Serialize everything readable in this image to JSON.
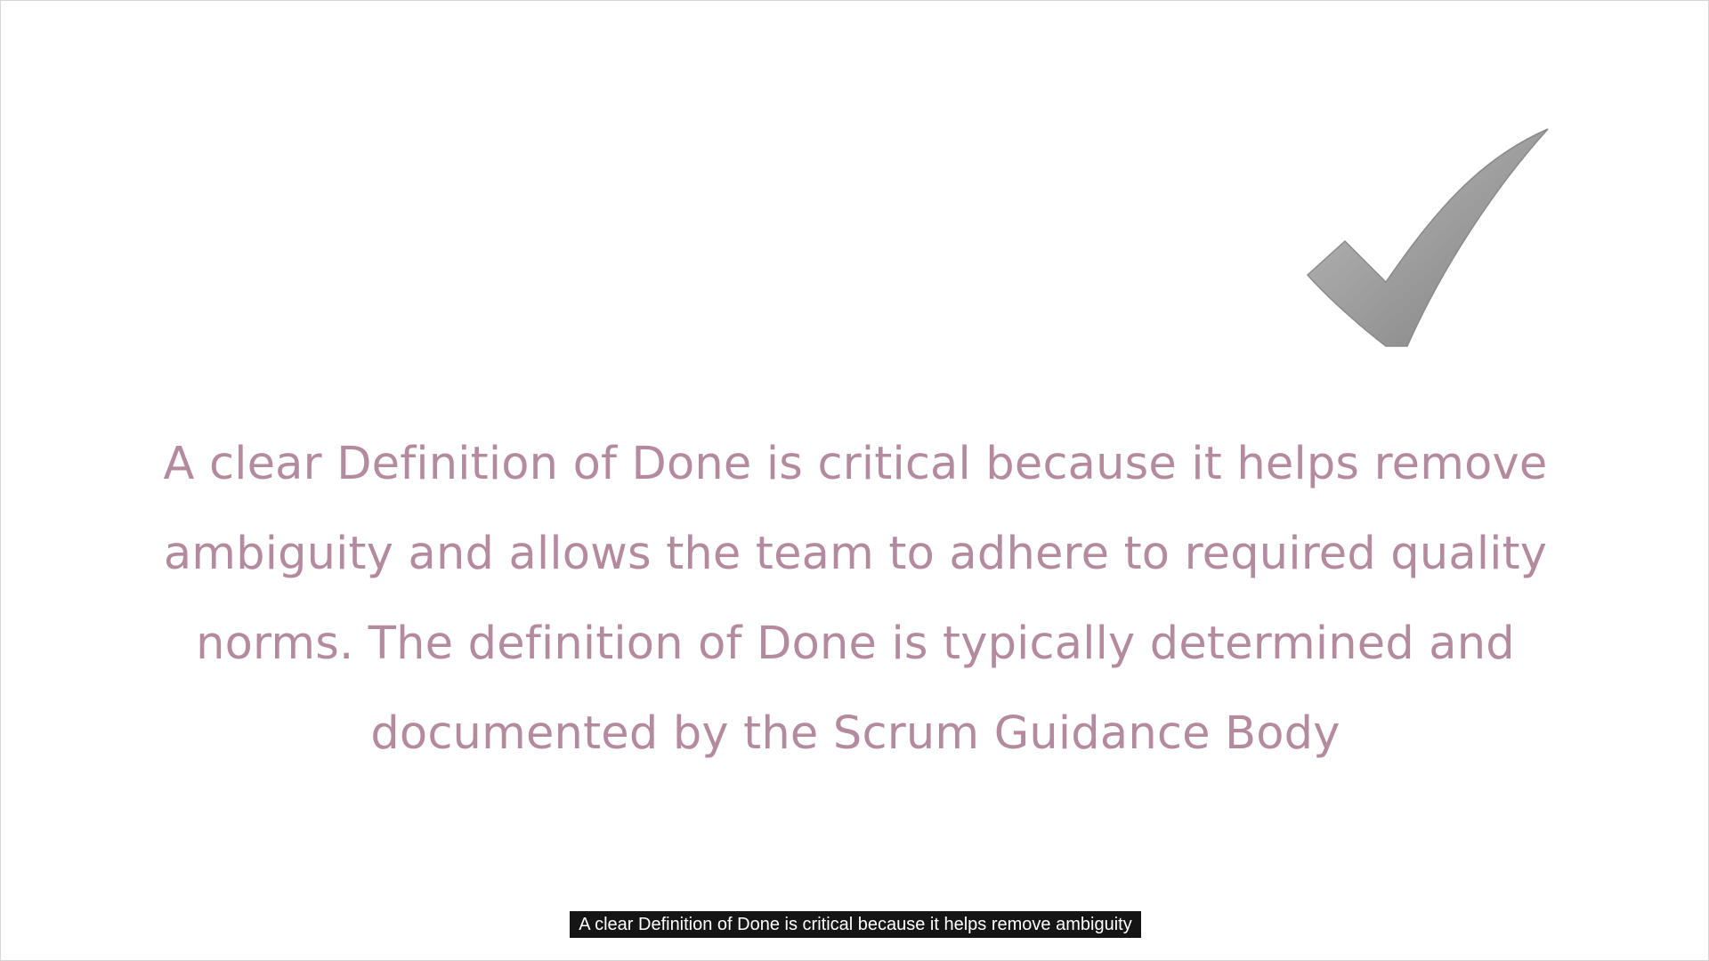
{
  "slide": {
    "icon": "checkmark-icon",
    "icon_color": "#9a9a9a",
    "text_color": "#b48a9e",
    "body_text": "A clear Definition of Done is critical because it helps remove ambiguity and allows the team to adhere to required quality norms. The definition of Done is typically determined and documented by the Scrum Guidance Body"
  },
  "caption": {
    "text": "A clear Definition of Done is critical because it helps remove ambiguity"
  }
}
